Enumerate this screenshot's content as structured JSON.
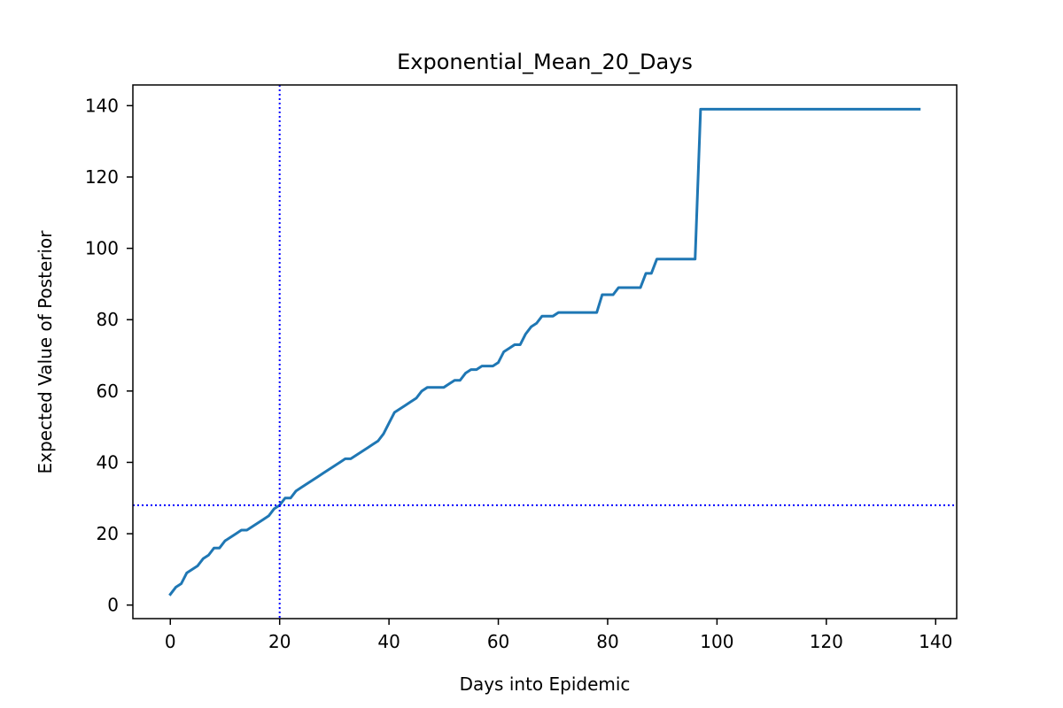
{
  "chart_data": {
    "type": "line",
    "title": "Exponential_Mean_20_Days",
    "xlabel": "Days into Epidemic",
    "ylabel": "Expected Value of Posterior",
    "xlim": [
      -6.85,
      143.85
    ],
    "ylim": [
      -3.8,
      145.8
    ],
    "xticks": [
      0,
      20,
      40,
      60,
      80,
      100,
      120,
      140
    ],
    "yticks": [
      0,
      20,
      40,
      60,
      80,
      100,
      120,
      140
    ],
    "grid": false,
    "series": [
      {
        "color": "#1f77b4",
        "x": [
          0,
          1,
          2,
          3,
          4,
          5,
          6,
          7,
          8,
          9,
          10,
          11,
          12,
          13,
          14,
          15,
          16,
          17,
          18,
          19,
          20,
          21,
          22,
          23,
          24,
          25,
          26,
          27,
          28,
          29,
          30,
          31,
          32,
          33,
          34,
          35,
          36,
          37,
          38,
          39,
          40,
          41,
          42,
          43,
          44,
          45,
          46,
          47,
          48,
          49,
          50,
          51,
          52,
          53,
          54,
          55,
          56,
          57,
          58,
          59,
          60,
          61,
          62,
          63,
          64,
          65,
          66,
          67,
          68,
          69,
          70,
          71,
          72,
          73,
          74,
          75,
          76,
          77,
          78,
          79,
          80,
          81,
          82,
          83,
          84,
          85,
          86,
          87,
          88,
          89,
          90,
          91,
          92,
          93,
          94,
          95,
          96,
          97,
          137
        ],
        "y": [
          3,
          5,
          6,
          9,
          10,
          11,
          13,
          14,
          16,
          16,
          18,
          19,
          20,
          21,
          21,
          22,
          23,
          24,
          25,
          27,
          28,
          30,
          30,
          32,
          33,
          34,
          35,
          36,
          37,
          38,
          39,
          40,
          41,
          41,
          42,
          43,
          44,
          45,
          46,
          48,
          51,
          54,
          55,
          56,
          57,
          58,
          60,
          61,
          61,
          61,
          61,
          62,
          63,
          63,
          65,
          66,
          66,
          67,
          67,
          67,
          68,
          71,
          72,
          73,
          73,
          76,
          78,
          79,
          81,
          81,
          81,
          82,
          82,
          82,
          82,
          82,
          82,
          82,
          82,
          87,
          87,
          87,
          89,
          89,
          89,
          89,
          89,
          93,
          93,
          97,
          97,
          97,
          97,
          97,
          97,
          97,
          97,
          139,
          139
        ]
      }
    ],
    "reference_lines": {
      "vertical_x": 20,
      "horizontal_y": 28,
      "color": "#0000ff",
      "style": "dotted"
    }
  }
}
